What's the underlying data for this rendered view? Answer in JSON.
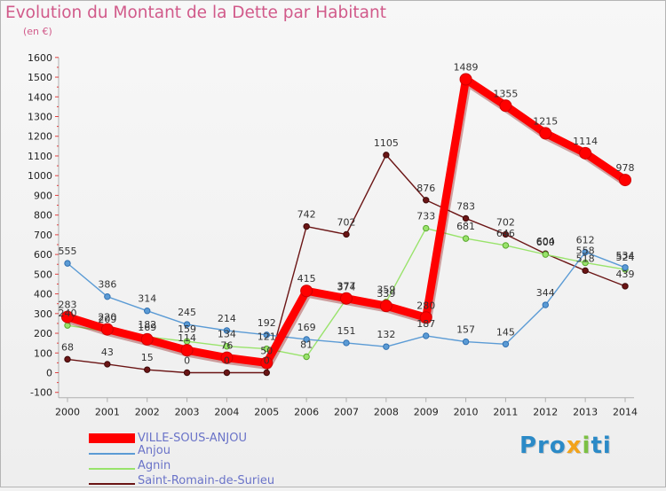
{
  "title": "Evolution du Montant de la Dette par Habitant",
  "subtitle": "(en €)",
  "logo": "Proxiti",
  "chart_data": {
    "type": "line",
    "x": [
      "2000",
      "2001",
      "2002",
      "2003",
      "2004",
      "2005",
      "2006",
      "2007",
      "2008",
      "2009",
      "2010",
      "2011",
      "2012",
      "2013",
      "2014"
    ],
    "yticks": [
      "-100",
      "0",
      "100",
      "200",
      "300",
      "400",
      "500",
      "600",
      "700",
      "800",
      "900",
      "1000",
      "1100",
      "1200",
      "1300",
      "1400",
      "1500",
      "1600"
    ],
    "ylim": [
      -100,
      1600
    ],
    "grid": false,
    "legend_position": "bottom-left",
    "series": [
      {
        "name": "Saint-Romain-de-Surieu",
        "color": "#6b1515",
        "values": [
          68,
          43,
          15,
          0,
          0,
          0,
          742,
          702,
          1105,
          876,
          783,
          702,
          604,
          518,
          439
        ]
      },
      {
        "name": "Agnin",
        "color": "#99e36b",
        "values": [
          240,
          209,
          182,
          159,
          134,
          121,
          81,
          374,
          359,
          733,
          681,
          646,
          600,
          558,
          524
        ]
      },
      {
        "name": "Anjou",
        "color": "#5b9bd5",
        "values": [
          555,
          386,
          314,
          245,
          214,
          192,
          169,
          151,
          132,
          187,
          157,
          145,
          344,
          612,
          534
        ]
      },
      {
        "name": "VILLE-SOUS-ANJOU",
        "color": "#ff0000",
        "values": [
          283,
          220,
          169,
          114,
          76,
          50,
          415,
          377,
          339,
          280,
          1489,
          1355,
          1215,
          1114,
          978
        ]
      }
    ],
    "legend_order": [
      "VILLE-SOUS-ANJOU",
      "Anjou",
      "Agnin",
      "Saint-Romain-de-Surieu"
    ]
  }
}
